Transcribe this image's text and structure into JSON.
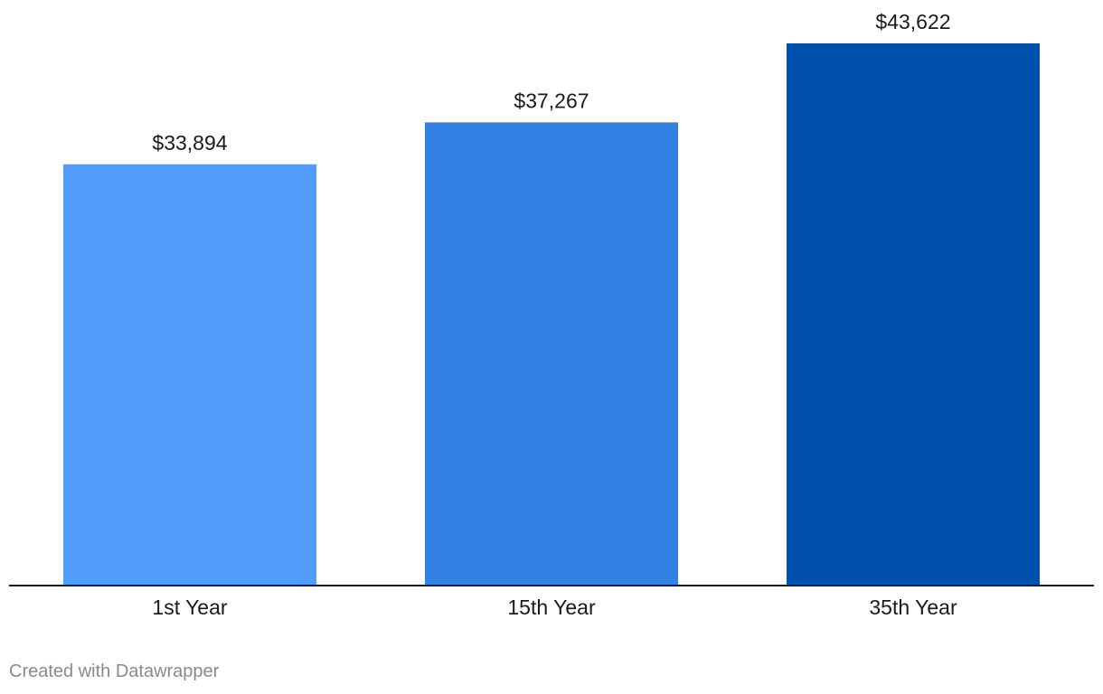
{
  "chart_data": {
    "type": "bar",
    "categories": [
      "1st Year",
      "15th Year",
      "35th Year"
    ],
    "values": [
      33894,
      37267,
      43622
    ],
    "value_labels": [
      "$33,894",
      "$37,267",
      "$43,622"
    ],
    "colors": [
      "#529cfe",
      "#3282e3",
      "#0050ae"
    ],
    "title": "",
    "xlabel": "",
    "ylabel": "",
    "ylim": [
      0,
      43622
    ],
    "grid": false,
    "legend": "none"
  },
  "footer": {
    "credit": "Created with Datawrapper"
  }
}
